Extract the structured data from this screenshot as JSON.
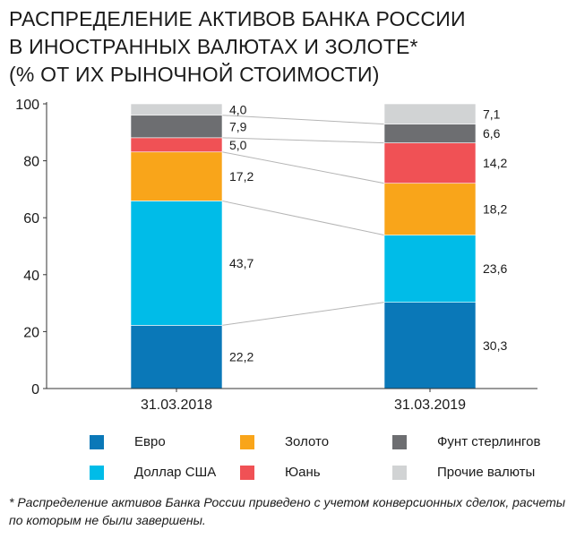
{
  "title_lines": [
    "РАСПРЕДЕЛЕНИЕ АКТИВОВ БАНКА РОССИИ",
    "В ИНОСТРАННЫХ ВАЛЮТАХ И ЗОЛОТЕ*",
    "(% ОТ ИХ РЫНОЧНОЙ СТОИМОСТИ)"
  ],
  "footnote": "* Распределение активов Банка России приведено с учетом конверсионных сделок, расчеты по которым не были завершены.",
  "chart_data": {
    "type": "bar",
    "stacked": true,
    "title": "РАСПРЕДЕЛЕНИЕ АКТИВОВ БАНКА РОССИИ В ИНОСТРАННЫХ ВАЛЮТАХ И ЗОЛОТЕ* (% ОТ ИХ РЫНОЧНОЙ СТОИМОСТИ)",
    "categories": [
      "31.03.2018",
      "31.03.2019"
    ],
    "ylim": [
      0,
      100
    ],
    "yticks": [
      0,
      20,
      40,
      60,
      80,
      100
    ],
    "grid": false,
    "legend_position": "bottom",
    "series": [
      {
        "name": "Евро",
        "color": "#0a78b8",
        "values": [
          22.2,
          30.3
        ],
        "labels": [
          "22,2",
          "30,3"
        ]
      },
      {
        "name": "Доллар США",
        "color": "#00bce8",
        "values": [
          43.7,
          23.6
        ],
        "labels": [
          "43,7",
          "23,6"
        ]
      },
      {
        "name": "Золото",
        "color": "#f9a51a",
        "values": [
          17.2,
          18.2
        ],
        "labels": [
          "17,2",
          "18,2"
        ]
      },
      {
        "name": "Юань",
        "color": "#f05155",
        "values": [
          5.0,
          14.2
        ],
        "labels": [
          "5,0",
          "14,2"
        ]
      },
      {
        "name": "Фунт стерлингов",
        "color": "#6d6e71",
        "values": [
          7.9,
          6.6
        ],
        "labels": [
          "7,9",
          "6,6"
        ]
      },
      {
        "name": "Прочие валюты",
        "color": "#d1d3d4",
        "values": [
          4.0,
          7.1
        ],
        "labels": [
          "4,0",
          "7,1"
        ]
      }
    ],
    "legend_order": [
      0,
      2,
      4,
      1,
      3,
      5
    ]
  }
}
